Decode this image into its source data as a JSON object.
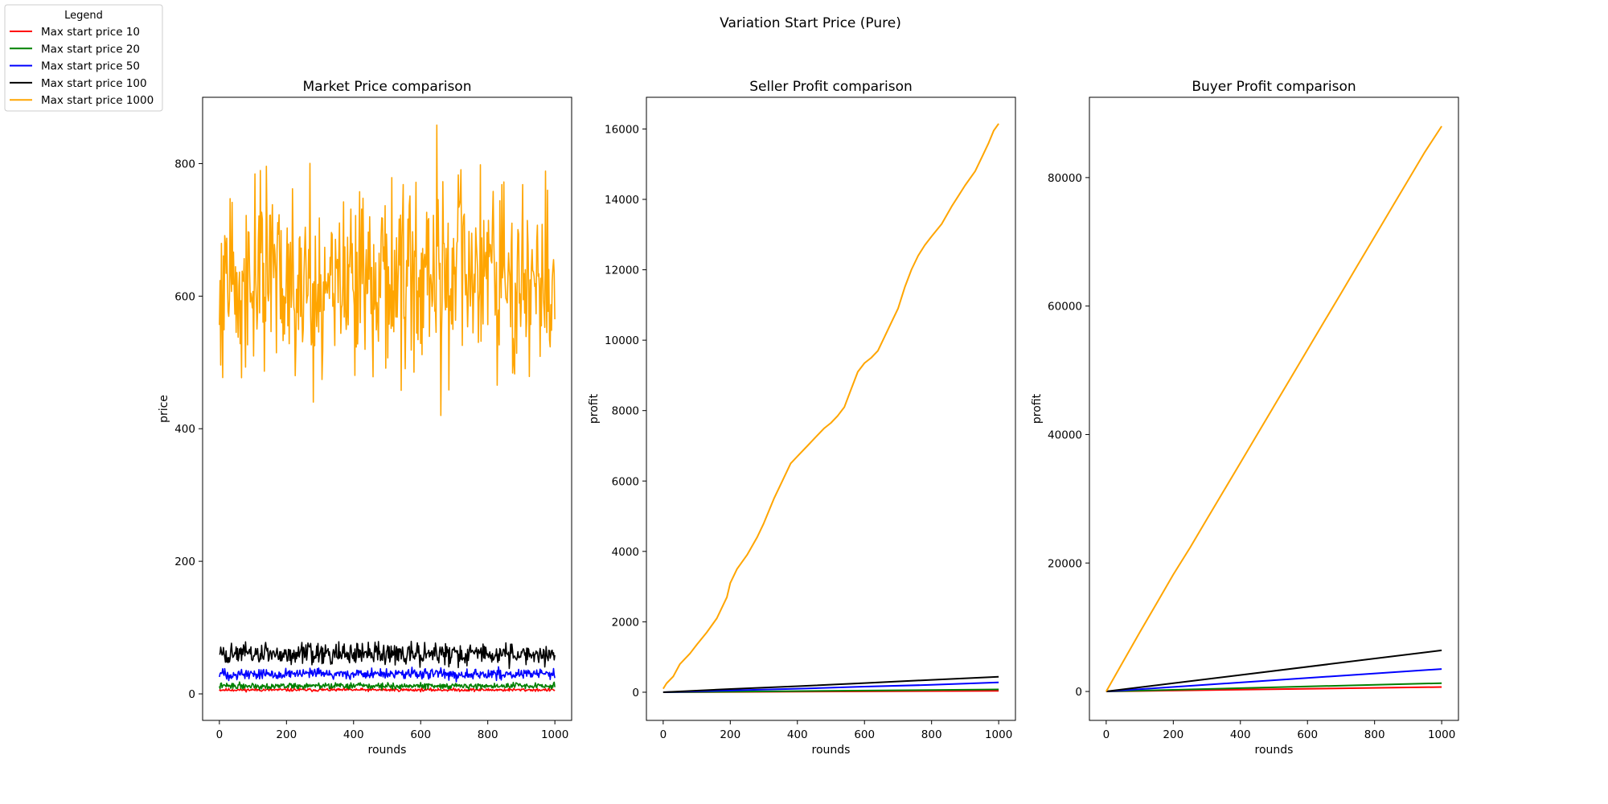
{
  "figure_title": "Variation Start Price (Pure)",
  "legend": {
    "title": "Legend",
    "entries": [
      {
        "label": "Max start price 10",
        "color": "#ff0000"
      },
      {
        "label": "Max start price 20",
        "color": "#008000"
      },
      {
        "label": "Max start price 50",
        "color": "#0000ff"
      },
      {
        "label": "Max start price 100",
        "color": "#000000"
      },
      {
        "label": "Max start price 1000",
        "color": "#ffa500"
      }
    ]
  },
  "chart_data": [
    {
      "type": "line",
      "title": "Market Price comparison",
      "xlabel": "rounds",
      "ylabel": "price",
      "xlim": [
        -50,
        1050
      ],
      "ylim": [
        -40,
        900
      ],
      "xticks": [
        0,
        200,
        400,
        600,
        800,
        1000
      ],
      "yticks": [
        0,
        200,
        400,
        600,
        800
      ],
      "ytick_labels": [
        "0",
        "200",
        "400",
        "600",
        "800"
      ],
      "series": [
        {
          "name": "Max start price 10",
          "color": "#ff0000",
          "kind": "noise",
          "mean": 6,
          "amp": 2,
          "seed": 11
        },
        {
          "name": "Max start price 20",
          "color": "#008000",
          "kind": "noise",
          "mean": 12,
          "amp": 4,
          "seed": 22
        },
        {
          "name": "Max start price 50",
          "color": "#0000ff",
          "kind": "noise",
          "mean": 30,
          "amp": 7,
          "seed": 33
        },
        {
          "name": "Max start price 100",
          "color": "#000000",
          "kind": "noise",
          "mean": 60,
          "amp": 14,
          "seed": 44
        },
        {
          "name": "Max start price 1000",
          "color": "#ffa500",
          "kind": "noise",
          "mean": 625,
          "amp": 120,
          "seed": 55,
          "min": 420,
          "max": 858
        }
      ]
    },
    {
      "type": "line",
      "title": "Seller Profit comparison",
      "xlabel": "rounds",
      "ylabel": "profit",
      "xlim": [
        -50,
        1050
      ],
      "ylim": [
        -800,
        16900
      ],
      "xticks": [
        0,
        200,
        400,
        600,
        800,
        1000
      ],
      "yticks": [
        0,
        2000,
        4000,
        6000,
        8000,
        10000,
        12000,
        14000,
        16000
      ],
      "ytick_labels": [
        "0",
        "2000",
        "4000",
        "6000",
        "8000",
        "10000",
        "12000",
        "14000",
        "16000"
      ],
      "series": [
        {
          "name": "Max start price 10",
          "color": "#ff0000",
          "kind": "points",
          "x": [
            0,
            1000
          ],
          "y": [
            0,
            40
          ]
        },
        {
          "name": "Max start price 20",
          "color": "#008000",
          "kind": "points",
          "x": [
            0,
            1000
          ],
          "y": [
            0,
            80
          ]
        },
        {
          "name": "Max start price 50",
          "color": "#0000ff",
          "kind": "points",
          "x": [
            0,
            200,
            400,
            600,
            800,
            1000
          ],
          "y": [
            0,
            50,
            100,
            160,
            210,
            280
          ]
        },
        {
          "name": "Max start price 100",
          "color": "#000000",
          "kind": "points",
          "x": [
            0,
            200,
            400,
            600,
            800,
            1000
          ],
          "y": [
            0,
            90,
            170,
            260,
            350,
            440
          ]
        },
        {
          "name": "Max start price 1000",
          "color": "#ffa500",
          "kind": "points",
          "x": [
            0,
            10,
            30,
            50,
            80,
            100,
            130,
            160,
            190,
            200,
            220,
            250,
            280,
            300,
            330,
            360,
            380,
            400,
            430,
            460,
            480,
            500,
            520,
            540,
            560,
            580,
            600,
            620,
            640,
            660,
            680,
            700,
            720,
            740,
            760,
            780,
            800,
            830,
            860,
            880,
            900,
            930,
            950,
            970,
            985,
            1000
          ],
          "y": [
            100,
            250,
            450,
            800,
            1100,
            1350,
            1700,
            2100,
            2700,
            3100,
            3500,
            3900,
            4400,
            4800,
            5500,
            6100,
            6500,
            6700,
            7000,
            7300,
            7500,
            7650,
            7850,
            8100,
            8600,
            9100,
            9350,
            9500,
            9700,
            10100,
            10500,
            10900,
            11500,
            12000,
            12400,
            12700,
            12950,
            13300,
            13800,
            14100,
            14400,
            14800,
            15200,
            15600,
            15950,
            16150
          ]
        }
      ]
    },
    {
      "type": "line",
      "title": "Buyer Profit comparison",
      "xlabel": "rounds",
      "ylabel": "profit",
      "xlim": [
        -50,
        1050
      ],
      "ylim": [
        -4500,
        92500
      ],
      "xticks": [
        0,
        200,
        400,
        600,
        800,
        1000
      ],
      "yticks": [
        0,
        20000,
        40000,
        60000,
        80000
      ],
      "ytick_labels": [
        "0",
        "20000",
        "40000",
        "60000",
        "80000"
      ],
      "series": [
        {
          "name": "Max start price 10",
          "color": "#ff0000",
          "kind": "points",
          "x": [
            0,
            1000
          ],
          "y": [
            0,
            700
          ]
        },
        {
          "name": "Max start price 20",
          "color": "#008000",
          "kind": "points",
          "x": [
            0,
            1000
          ],
          "y": [
            0,
            1300
          ]
        },
        {
          "name": "Max start price 50",
          "color": "#0000ff",
          "kind": "points",
          "x": [
            0,
            1000
          ],
          "y": [
            0,
            3500
          ]
        },
        {
          "name": "Max start price 100",
          "color": "#000000",
          "kind": "points",
          "x": [
            0,
            1000
          ],
          "y": [
            0,
            6400
          ]
        },
        {
          "name": "Max start price 1000",
          "color": "#ffa500",
          "kind": "points",
          "x": [
            0,
            50,
            100,
            150,
            200,
            250,
            300,
            350,
            400,
            450,
            500,
            550,
            600,
            650,
            700,
            750,
            800,
            850,
            900,
            950,
            1000
          ],
          "y": [
            0,
            4600,
            9200,
            13700,
            18200,
            22400,
            26800,
            31200,
            35600,
            40000,
            44400,
            48800,
            53200,
            57600,
            62000,
            66400,
            70800,
            75200,
            79600,
            84000,
            88000
          ]
        }
      ]
    }
  ]
}
